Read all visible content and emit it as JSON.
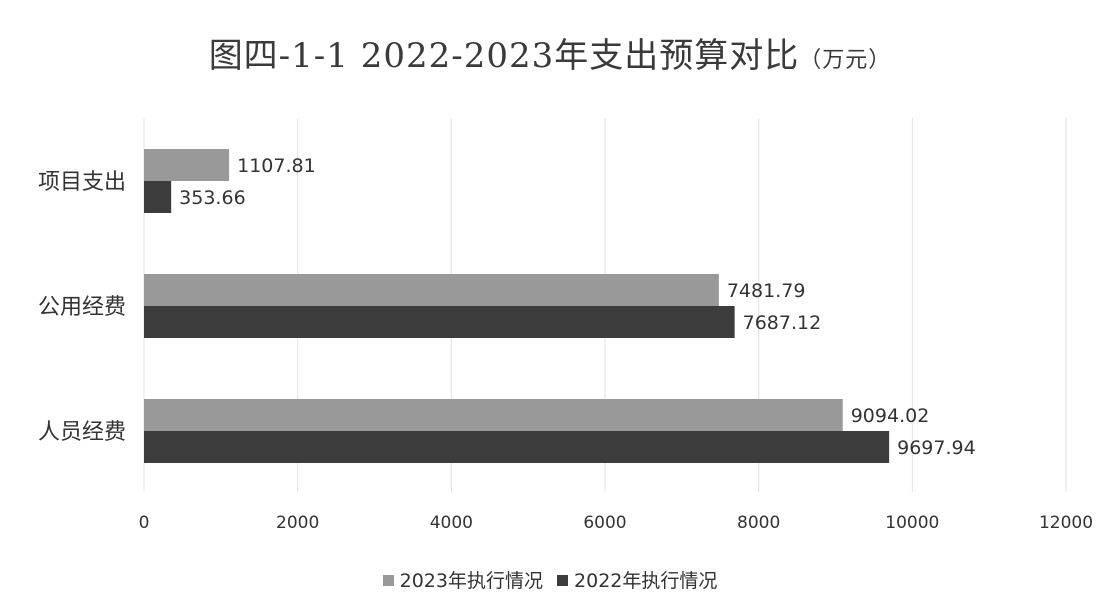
{
  "title": "图四-1-1 2022-2023年支出预算对比",
  "title_unit": "（万元）",
  "colors": {
    "series_2023": "#999999",
    "series_2022": "#3c3c3c",
    "grid": "#e2e2e2",
    "axis_text": "#333333"
  },
  "chart_data": {
    "type": "bar",
    "orientation": "horizontal",
    "title": "图四-1-1 2022-2023年支出预算对比（万元）",
    "categories": [
      "人员经费",
      "公用经费",
      "项目支出"
    ],
    "series": [
      {
        "name": "2023年执行情况",
        "values": [
          9094.02,
          7481.79,
          1107.81
        ]
      },
      {
        "name": "2022年执行情况",
        "values": [
          9697.94,
          7687.12,
          353.66
        ]
      }
    ],
    "xlim": [
      0,
      12000
    ],
    "xticks": [
      "0",
      "2000",
      "4000",
      "6000",
      "8000",
      "10000",
      "12000"
    ],
    "data_labels": {
      "人员经费": [
        "9094.02",
        "9697.94"
      ],
      "公用经费": [
        "7481.79",
        "7687.12"
      ],
      "项目支出": [
        "1107.81",
        "353.66"
      ]
    },
    "grid": true,
    "legend_position": "bottom"
  }
}
